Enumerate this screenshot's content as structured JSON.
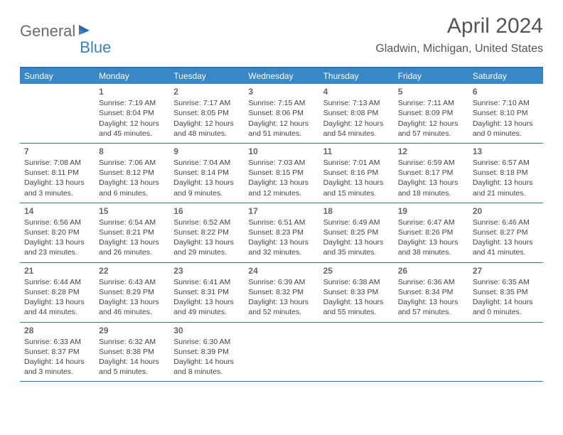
{
  "logo": {
    "text1": "General",
    "text2": "Blue"
  },
  "title": {
    "month": "April 2024",
    "location": "Gladwin, Michigan, United States"
  },
  "colors": {
    "header_bg": "#3a87c7",
    "header_border": "#2d74b6",
    "logo_gray": "#6a6a6a",
    "logo_blue": "#3a7fc4"
  },
  "dayHeaders": [
    "Sunday",
    "Monday",
    "Tuesday",
    "Wednesday",
    "Thursday",
    "Friday",
    "Saturday"
  ],
  "weeks": [
    [
      null,
      {
        "n": "1",
        "sr": "Sunrise: 7:19 AM",
        "ss": "Sunset: 8:04 PM",
        "d1": "Daylight: 12 hours",
        "d2": "and 45 minutes."
      },
      {
        "n": "2",
        "sr": "Sunrise: 7:17 AM",
        "ss": "Sunset: 8:05 PM",
        "d1": "Daylight: 12 hours",
        "d2": "and 48 minutes."
      },
      {
        "n": "3",
        "sr": "Sunrise: 7:15 AM",
        "ss": "Sunset: 8:06 PM",
        "d1": "Daylight: 12 hours",
        "d2": "and 51 minutes."
      },
      {
        "n": "4",
        "sr": "Sunrise: 7:13 AM",
        "ss": "Sunset: 8:08 PM",
        "d1": "Daylight: 12 hours",
        "d2": "and 54 minutes."
      },
      {
        "n": "5",
        "sr": "Sunrise: 7:11 AM",
        "ss": "Sunset: 8:09 PM",
        "d1": "Daylight: 12 hours",
        "d2": "and 57 minutes."
      },
      {
        "n": "6",
        "sr": "Sunrise: 7:10 AM",
        "ss": "Sunset: 8:10 PM",
        "d1": "Daylight: 13 hours",
        "d2": "and 0 minutes."
      }
    ],
    [
      {
        "n": "7",
        "sr": "Sunrise: 7:08 AM",
        "ss": "Sunset: 8:11 PM",
        "d1": "Daylight: 13 hours",
        "d2": "and 3 minutes."
      },
      {
        "n": "8",
        "sr": "Sunrise: 7:06 AM",
        "ss": "Sunset: 8:12 PM",
        "d1": "Daylight: 13 hours",
        "d2": "and 6 minutes."
      },
      {
        "n": "9",
        "sr": "Sunrise: 7:04 AM",
        "ss": "Sunset: 8:14 PM",
        "d1": "Daylight: 13 hours",
        "d2": "and 9 minutes."
      },
      {
        "n": "10",
        "sr": "Sunrise: 7:03 AM",
        "ss": "Sunset: 8:15 PM",
        "d1": "Daylight: 13 hours",
        "d2": "and 12 minutes."
      },
      {
        "n": "11",
        "sr": "Sunrise: 7:01 AM",
        "ss": "Sunset: 8:16 PM",
        "d1": "Daylight: 13 hours",
        "d2": "and 15 minutes."
      },
      {
        "n": "12",
        "sr": "Sunrise: 6:59 AM",
        "ss": "Sunset: 8:17 PM",
        "d1": "Daylight: 13 hours",
        "d2": "and 18 minutes."
      },
      {
        "n": "13",
        "sr": "Sunrise: 6:57 AM",
        "ss": "Sunset: 8:18 PM",
        "d1": "Daylight: 13 hours",
        "d2": "and 21 minutes."
      }
    ],
    [
      {
        "n": "14",
        "sr": "Sunrise: 6:56 AM",
        "ss": "Sunset: 8:20 PM",
        "d1": "Daylight: 13 hours",
        "d2": "and 23 minutes."
      },
      {
        "n": "15",
        "sr": "Sunrise: 6:54 AM",
        "ss": "Sunset: 8:21 PM",
        "d1": "Daylight: 13 hours",
        "d2": "and 26 minutes."
      },
      {
        "n": "16",
        "sr": "Sunrise: 6:52 AM",
        "ss": "Sunset: 8:22 PM",
        "d1": "Daylight: 13 hours",
        "d2": "and 29 minutes."
      },
      {
        "n": "17",
        "sr": "Sunrise: 6:51 AM",
        "ss": "Sunset: 8:23 PM",
        "d1": "Daylight: 13 hours",
        "d2": "and 32 minutes."
      },
      {
        "n": "18",
        "sr": "Sunrise: 6:49 AM",
        "ss": "Sunset: 8:25 PM",
        "d1": "Daylight: 13 hours",
        "d2": "and 35 minutes."
      },
      {
        "n": "19",
        "sr": "Sunrise: 6:47 AM",
        "ss": "Sunset: 8:26 PM",
        "d1": "Daylight: 13 hours",
        "d2": "and 38 minutes."
      },
      {
        "n": "20",
        "sr": "Sunrise: 6:46 AM",
        "ss": "Sunset: 8:27 PM",
        "d1": "Daylight: 13 hours",
        "d2": "and 41 minutes."
      }
    ],
    [
      {
        "n": "21",
        "sr": "Sunrise: 6:44 AM",
        "ss": "Sunset: 8:28 PM",
        "d1": "Daylight: 13 hours",
        "d2": "and 44 minutes."
      },
      {
        "n": "22",
        "sr": "Sunrise: 6:43 AM",
        "ss": "Sunset: 8:29 PM",
        "d1": "Daylight: 13 hours",
        "d2": "and 46 minutes."
      },
      {
        "n": "23",
        "sr": "Sunrise: 6:41 AM",
        "ss": "Sunset: 8:31 PM",
        "d1": "Daylight: 13 hours",
        "d2": "and 49 minutes."
      },
      {
        "n": "24",
        "sr": "Sunrise: 6:39 AM",
        "ss": "Sunset: 8:32 PM",
        "d1": "Daylight: 13 hours",
        "d2": "and 52 minutes."
      },
      {
        "n": "25",
        "sr": "Sunrise: 6:38 AM",
        "ss": "Sunset: 8:33 PM",
        "d1": "Daylight: 13 hours",
        "d2": "and 55 minutes."
      },
      {
        "n": "26",
        "sr": "Sunrise: 6:36 AM",
        "ss": "Sunset: 8:34 PM",
        "d1": "Daylight: 13 hours",
        "d2": "and 57 minutes."
      },
      {
        "n": "27",
        "sr": "Sunrise: 6:35 AM",
        "ss": "Sunset: 8:35 PM",
        "d1": "Daylight: 14 hours",
        "d2": "and 0 minutes."
      }
    ],
    [
      {
        "n": "28",
        "sr": "Sunrise: 6:33 AM",
        "ss": "Sunset: 8:37 PM",
        "d1": "Daylight: 14 hours",
        "d2": "and 3 minutes."
      },
      {
        "n": "29",
        "sr": "Sunrise: 6:32 AM",
        "ss": "Sunset: 8:38 PM",
        "d1": "Daylight: 14 hours",
        "d2": "and 5 minutes."
      },
      {
        "n": "30",
        "sr": "Sunrise: 6:30 AM",
        "ss": "Sunset: 8:39 PM",
        "d1": "Daylight: 14 hours",
        "d2": "and 8 minutes."
      },
      null,
      null,
      null,
      null
    ]
  ]
}
